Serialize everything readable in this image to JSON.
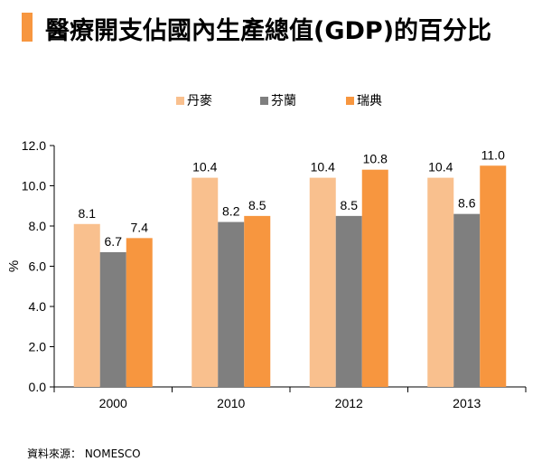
{
  "chart_data": {
    "type": "bar",
    "title": "醫療開支佔國內生產總值(GDP)的百分比",
    "xlabel": "",
    "ylabel": "%",
    "ylim": [
      0,
      12
    ],
    "yticks": [
      "0.0",
      "2.0",
      "4.0",
      "6.0",
      "8.0",
      "10.0",
      "12.0"
    ],
    "categories": [
      "2000",
      "2010",
      "2012",
      "2013"
    ],
    "series": [
      {
        "name": "丹麥",
        "color": "#f9c08e",
        "values": [
          8.1,
          10.4,
          10.4,
          10.4
        ],
        "labels": [
          "8.1",
          "10.4",
          "10.4",
          "10.4"
        ]
      },
      {
        "name": "芬蘭",
        "color": "#7f7f7f",
        "values": [
          6.7,
          8.2,
          8.5,
          8.6
        ],
        "labels": [
          "6.7",
          "8.2",
          "8.5",
          "8.6"
        ]
      },
      {
        "name": "瑞典",
        "color": "#f7963f",
        "values": [
          7.4,
          8.5,
          10.8,
          11.0
        ],
        "labels": [
          "7.4",
          "8.5",
          "10.8",
          "11.0"
        ]
      }
    ],
    "legend_position": "top-center",
    "grid": false
  },
  "source": "資料來源： NOMESCO"
}
